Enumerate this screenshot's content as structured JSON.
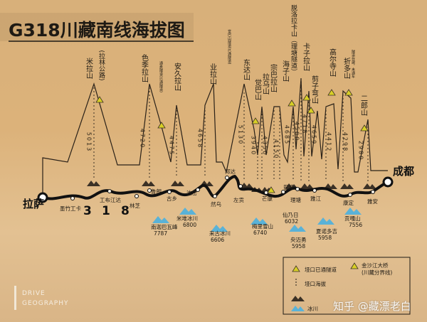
{
  "title": "G318川藏南线海拔图",
  "route_number": [
    "3",
    "1",
    "8"
  ],
  "endpoints": {
    "start": "拉萨",
    "end": "成都"
  },
  "peaks": [
    {
      "name": "米拉山",
      "note": "(拉林公路)",
      "elevation_label": "5013",
      "tunnel": true
    },
    {
      "name": "色季拉山",
      "note": "通麦隧道(已通隧道)",
      "elevation_label": "4720",
      "tunnel": true
    },
    {
      "name": "安久拉山",
      "elevation_label": "4475"
    },
    {
      "name": "业拉山",
      "elevation_label": "4658"
    },
    {
      "name": "东达山",
      "note": "觉巴山隧道(已通隧道)",
      "elevation_label": "5130"
    },
    {
      "name": "觉巴山",
      "elevation_label": "3940",
      "tunnel": true
    },
    {
      "name": "拉乌山",
      "elevation_label": "4350"
    },
    {
      "name": "宗巴拉山",
      "elevation_label": "4150"
    },
    {
      "name": "海子山",
      "elevation_label": "4685",
      "tunnel": true
    },
    {
      "name": "脱洛拉卡山（理塘隧道）",
      "elevation_label": "4500"
    },
    {
      "name": "卡子拉山",
      "elevation_label": "4718",
      "tunnel": true
    },
    {
      "name": "剪子弯山",
      "elevation_label": "4659",
      "tunnel": true
    },
    {
      "name": "高尔寺山",
      "elevation_label": "4412",
      "tunnel": true
    },
    {
      "name": "折多山",
      "note": "隧道在建，未通车",
      "elevation_label": "4298",
      "tunnel": true
    },
    {
      "name": "二郎山",
      "elevation_label": "2980",
      "tunnel": true
    }
  ],
  "towns": [
    "墨竹工卡",
    "工布江达",
    "林芝",
    "鲁朗",
    "古乡",
    "波密",
    "然乌",
    "邦达",
    "左贡",
    "芒康",
    "巴塘",
    "理塘",
    "雅江",
    "康定",
    "雅安"
  ],
  "snow_mountains": [
    {
      "name": "南迦巴瓦峰",
      "elevation": "7787"
    },
    {
      "name": "米堆冰川",
      "elevation": "6800"
    },
    {
      "name": "来古冰川",
      "elevation": "6606"
    },
    {
      "name": "梅里雪山",
      "elevation": "6740"
    },
    {
      "name": "仙乃日",
      "elevation": "6032"
    },
    {
      "name": "央迈勇",
      "elevation": "5958"
    },
    {
      "name": "夏诺多吉",
      "elevation": "5958"
    },
    {
      "name": "贡嘎山",
      "elevation": "7556"
    }
  ],
  "river_bridge": "金沙江大桥(川藏分界线)",
  "legend": {
    "tunnel_label": "垭口已通隧道",
    "bridge_label": "金沙江大桥",
    "bridge_sub": "(川藏分界线)",
    "pass_label": "垭口海拔",
    "snow_label": "冰川"
  },
  "logo": {
    "line1": "DRIVE",
    "line2": "GEOGRAPHY"
  },
  "watermark": "知乎 @藏漂老白",
  "colors": {
    "background": "#dbb17a",
    "route": "#111111",
    "pass_line": "#2a2118",
    "text": "#2c2418",
    "snow_icon": "#5ab2d7",
    "tunnel_icon": "#d8cf27"
  }
}
